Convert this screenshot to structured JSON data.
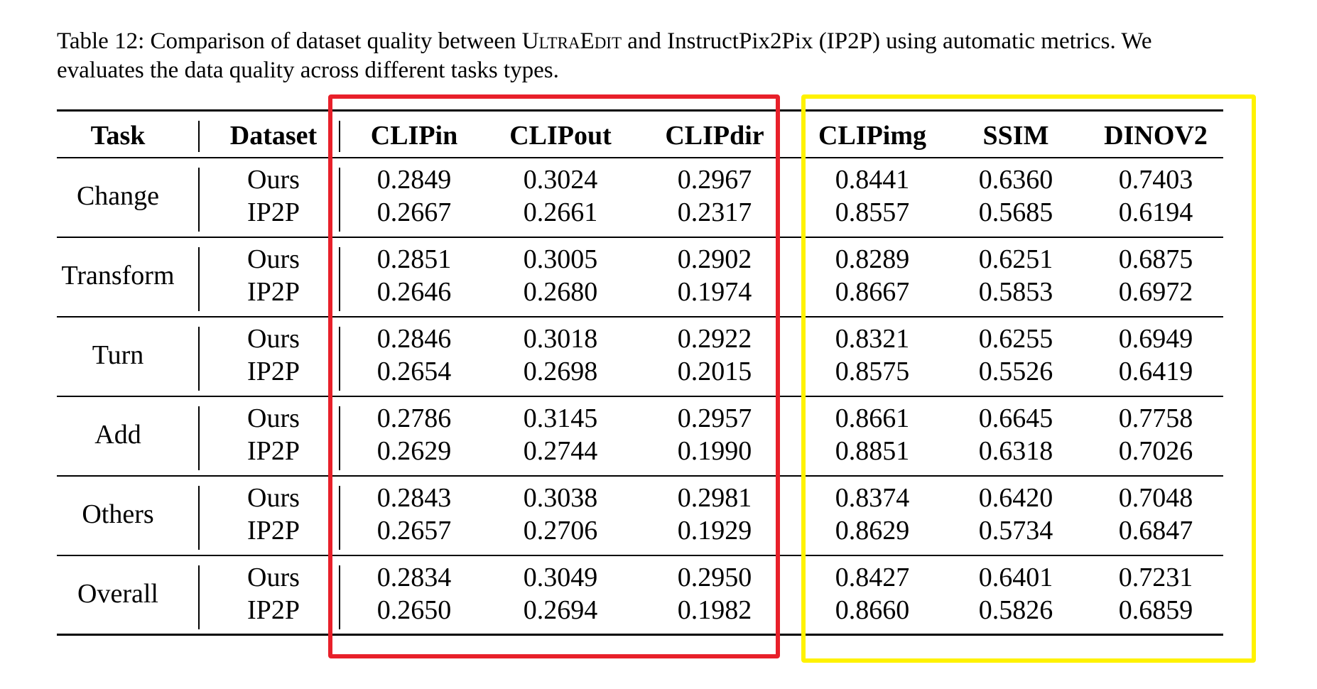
{
  "caption": {
    "prefix": "Table 12: Comparison of dataset quality between ",
    "name_small_caps": "UltraEdit",
    "suffix": " and InstructPix2Pix (IP2P) using automatic metrics. We evaluates the data quality across different tasks types."
  },
  "columns": [
    "Task",
    "Dataset",
    "CLIPin",
    "CLIPout",
    "CLIPdir",
    "CLIPimg",
    "SSIM",
    "DINOV2"
  ],
  "rows": [
    {
      "task": "Change",
      "ours": [
        "0.2849",
        "0.3024",
        "0.2967",
        "0.8441",
        "0.6360",
        "0.7403"
      ],
      "ip2p": [
        "0.2667",
        "0.2661",
        "0.2317",
        "0.8557",
        "0.5685",
        "0.6194"
      ]
    },
    {
      "task": "Transform",
      "ours": [
        "0.2851",
        "0.3005",
        "0.2902",
        "0.8289",
        "0.6251",
        "0.6875"
      ],
      "ip2p": [
        "0.2646",
        "0.2680",
        "0.1974",
        "0.8667",
        "0.5853",
        "0.6972"
      ]
    },
    {
      "task": "Turn",
      "ours": [
        "0.2846",
        "0.3018",
        "0.2922",
        "0.8321",
        "0.6255",
        "0.6949"
      ],
      "ip2p": [
        "0.2654",
        "0.2698",
        "0.2015",
        "0.8575",
        "0.5526",
        "0.6419"
      ]
    },
    {
      "task": "Add",
      "ours": [
        "0.2786",
        "0.3145",
        "0.2957",
        "0.8661",
        "0.6645",
        "0.7758"
      ],
      "ip2p": [
        "0.2629",
        "0.2744",
        "0.1990",
        "0.8851",
        "0.6318",
        "0.7026"
      ]
    },
    {
      "task": "Others",
      "ours": [
        "0.2843",
        "0.3038",
        "0.2981",
        "0.8374",
        "0.6420",
        "0.7048"
      ],
      "ip2p": [
        "0.2657",
        "0.2706",
        "0.1929",
        "0.8629",
        "0.5734",
        "0.6847"
      ]
    },
    {
      "task": "Overall",
      "ours": [
        "0.2834",
        "0.3049",
        "0.2950",
        "0.8427",
        "0.6401",
        "0.7231"
      ],
      "ip2p": [
        "0.2650",
        "0.2694",
        "0.1982",
        "0.8660",
        "0.5826",
        "0.6859"
      ]
    }
  ],
  "dataset_labels": {
    "ours": "Ours",
    "ip2p": "IP2P"
  },
  "highlight_colors": {
    "clip_group": "#e8202a",
    "image_group": "#fff200"
  }
}
